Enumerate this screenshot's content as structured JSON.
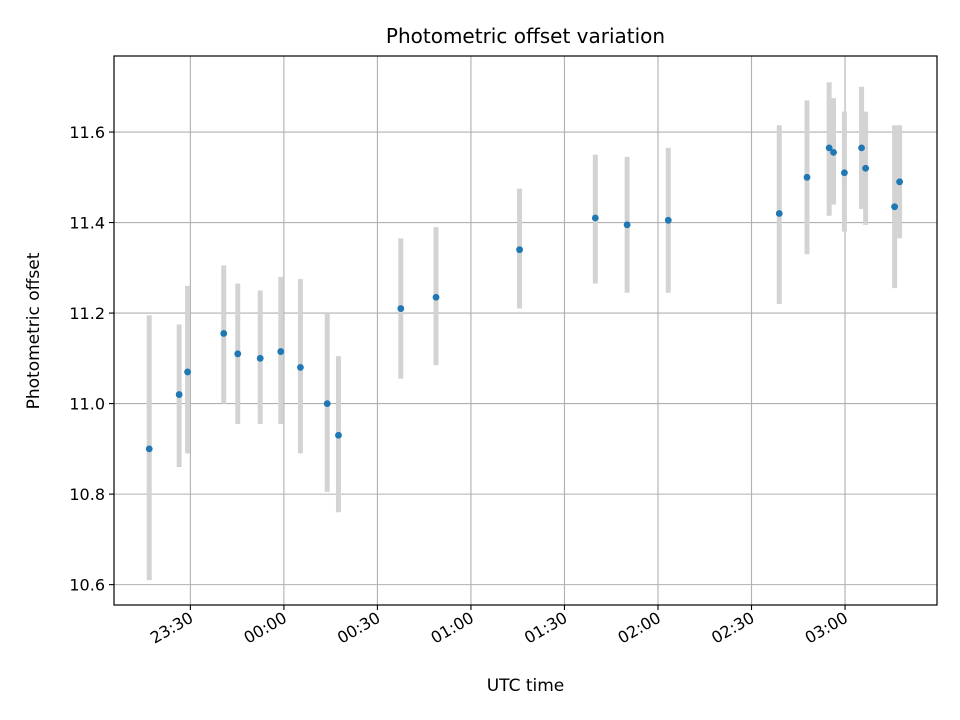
{
  "chart_data": {
    "type": "scatter",
    "title": "Photometric offset variation",
    "xlabel": "UTC time",
    "ylabel": "Photometric offset",
    "x_tick_labels": [
      "23:30",
      "00:00",
      "00:30",
      "01:00",
      "01:30",
      "02:00",
      "02:30",
      "03:00"
    ],
    "x_tick_minutes": [
      -30,
      0,
      30,
      60,
      90,
      120,
      150,
      180
    ],
    "xlim_minutes": [
      -54.5,
      209.5
    ],
    "y_ticks": [
      10.6,
      10.8,
      11.0,
      11.2,
      11.4,
      11.6
    ],
    "ylim": [
      10.555,
      11.768
    ],
    "grid": true,
    "legend": "none",
    "colors": {
      "point": "#1f77b4",
      "errorbar": "#d3d3d3",
      "grid": "#b0b0b0"
    },
    "series": [
      {
        "x_minutes": [
          -43.2,
          -33.6,
          -30.9,
          -19.3,
          -14.8,
          -7.6,
          -1.0,
          5.3,
          13.9,
          17.5,
          37.5,
          48.8,
          75.6,
          99.9,
          110.1,
          123.3,
          158.9,
          167.8,
          174.9,
          176.3,
          179.8,
          185.3,
          186.6,
          195.9,
          197.5
        ],
        "y": [
          10.9,
          11.02,
          11.07,
          11.155,
          11.11,
          11.1,
          11.115,
          11.08,
          11.0,
          10.93,
          11.21,
          11.235,
          11.34,
          11.41,
          11.395,
          11.405,
          11.42,
          11.5,
          11.565,
          11.555,
          11.51,
          11.565,
          11.52,
          11.435,
          11.49
        ],
        "err_low": [
          10.61,
          10.86,
          10.89,
          11.0,
          10.955,
          10.955,
          10.955,
          10.89,
          10.805,
          10.76,
          11.055,
          11.085,
          11.21,
          11.265,
          11.245,
          11.245,
          11.22,
          11.33,
          11.415,
          11.44,
          11.38,
          11.43,
          11.395,
          11.255,
          11.365
        ],
        "err_high": [
          11.195,
          11.175,
          11.26,
          11.305,
          11.265,
          11.25,
          11.28,
          11.275,
          11.2,
          11.105,
          11.365,
          11.39,
          11.475,
          11.55,
          11.545,
          11.565,
          11.615,
          11.67,
          11.71,
          11.675,
          11.645,
          11.7,
          11.645,
          11.615,
          11.615
        ]
      }
    ]
  }
}
